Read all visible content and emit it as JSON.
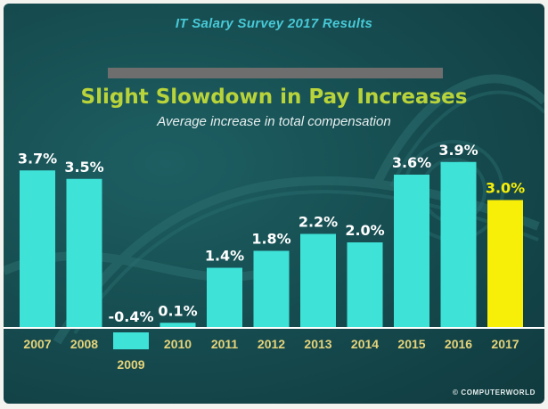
{
  "header": {
    "survey_title": "IT Salary Survey 2017 Results",
    "headline": "Slight Slowdown in Pay Increases",
    "subtitle": "Average increase in total compensation"
  },
  "footer": {
    "credit": "© COMPUTERWORLD"
  },
  "colors": {
    "bar": "#3ee2d7",
    "highlight_bar": "#f7ef08",
    "bar_label": "#ffffff",
    "highlight_label": "#f7ef08",
    "year_label": "#e4d37a",
    "baseline": "#ffffff"
  },
  "chart_data": {
    "type": "bar",
    "categories": [
      "2007",
      "2008",
      "2009",
      "2010",
      "2011",
      "2012",
      "2013",
      "2014",
      "2015",
      "2016",
      "2017"
    ],
    "values": [
      3.7,
      3.5,
      -0.4,
      0.1,
      1.4,
      1.8,
      2.2,
      2.0,
      3.6,
      3.9,
      3.0
    ],
    "labels": [
      "3.7%",
      "3.5%",
      "-0.4%",
      "0.1%",
      "1.4%",
      "1.8%",
      "2.2%",
      "2.0%",
      "3.6%",
      "3.9%",
      "3.0%"
    ],
    "highlight": "2017",
    "title": "Slight Slowdown in Pay Increases",
    "subtitle": "Average increase in total compensation",
    "xlabel": "",
    "ylabel": "",
    "ylim": [
      -0.4,
      3.9
    ],
    "grid": false,
    "legend": "none"
  }
}
